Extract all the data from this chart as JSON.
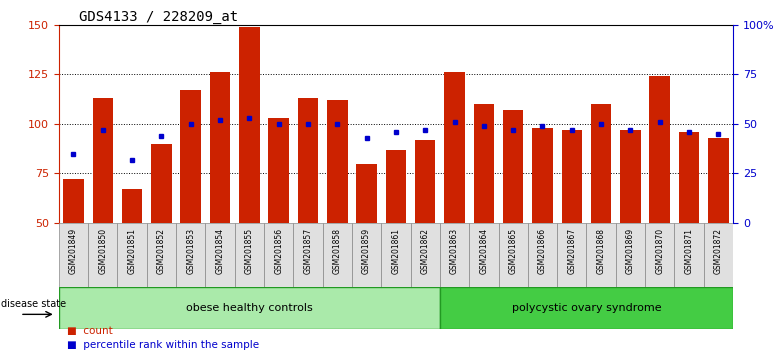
{
  "title": "GDS4133 / 228209_at",
  "samples": [
    "GSM201849",
    "GSM201850",
    "GSM201851",
    "GSM201852",
    "GSM201853",
    "GSM201854",
    "GSM201855",
    "GSM201856",
    "GSM201857",
    "GSM201858",
    "GSM201859",
    "GSM201861",
    "GSM201862",
    "GSM201863",
    "GSM201864",
    "GSM201865",
    "GSM201866",
    "GSM201867",
    "GSM201868",
    "GSM201869",
    "GSM201870",
    "GSM201871",
    "GSM201872"
  ],
  "counts": [
    72,
    113,
    67,
    90,
    117,
    126,
    149,
    103,
    113,
    112,
    80,
    87,
    92,
    126,
    110,
    107,
    98,
    97,
    110,
    97,
    124,
    96,
    93
  ],
  "percentile_display": [
    35,
    47,
    32,
    44,
    50,
    52,
    53,
    50,
    50,
    50,
    43,
    46,
    47,
    51,
    49,
    47,
    49,
    47,
    50,
    47,
    51,
    46,
    45
  ],
  "group1_label": "obese healthy controls",
  "group1_count": 13,
  "group2_label": "polycystic ovary syndrome",
  "group2_count": 10,
  "disease_state_label": "disease state",
  "legend_count": "count",
  "legend_percentile": "percentile rank within the sample",
  "bar_color": "#CC2200",
  "marker_color": "#0000CC",
  "group1_color": "#AAEAAA",
  "group2_color": "#44CC44",
  "ymin": 50,
  "ymax": 150,
  "yticks_left": [
    50,
    75,
    100,
    125,
    150
  ],
  "yticks_right": [
    0,
    25,
    50,
    75,
    100
  ],
  "ytick_labels_right": [
    "0",
    "25",
    "50",
    "75",
    "100%"
  ]
}
